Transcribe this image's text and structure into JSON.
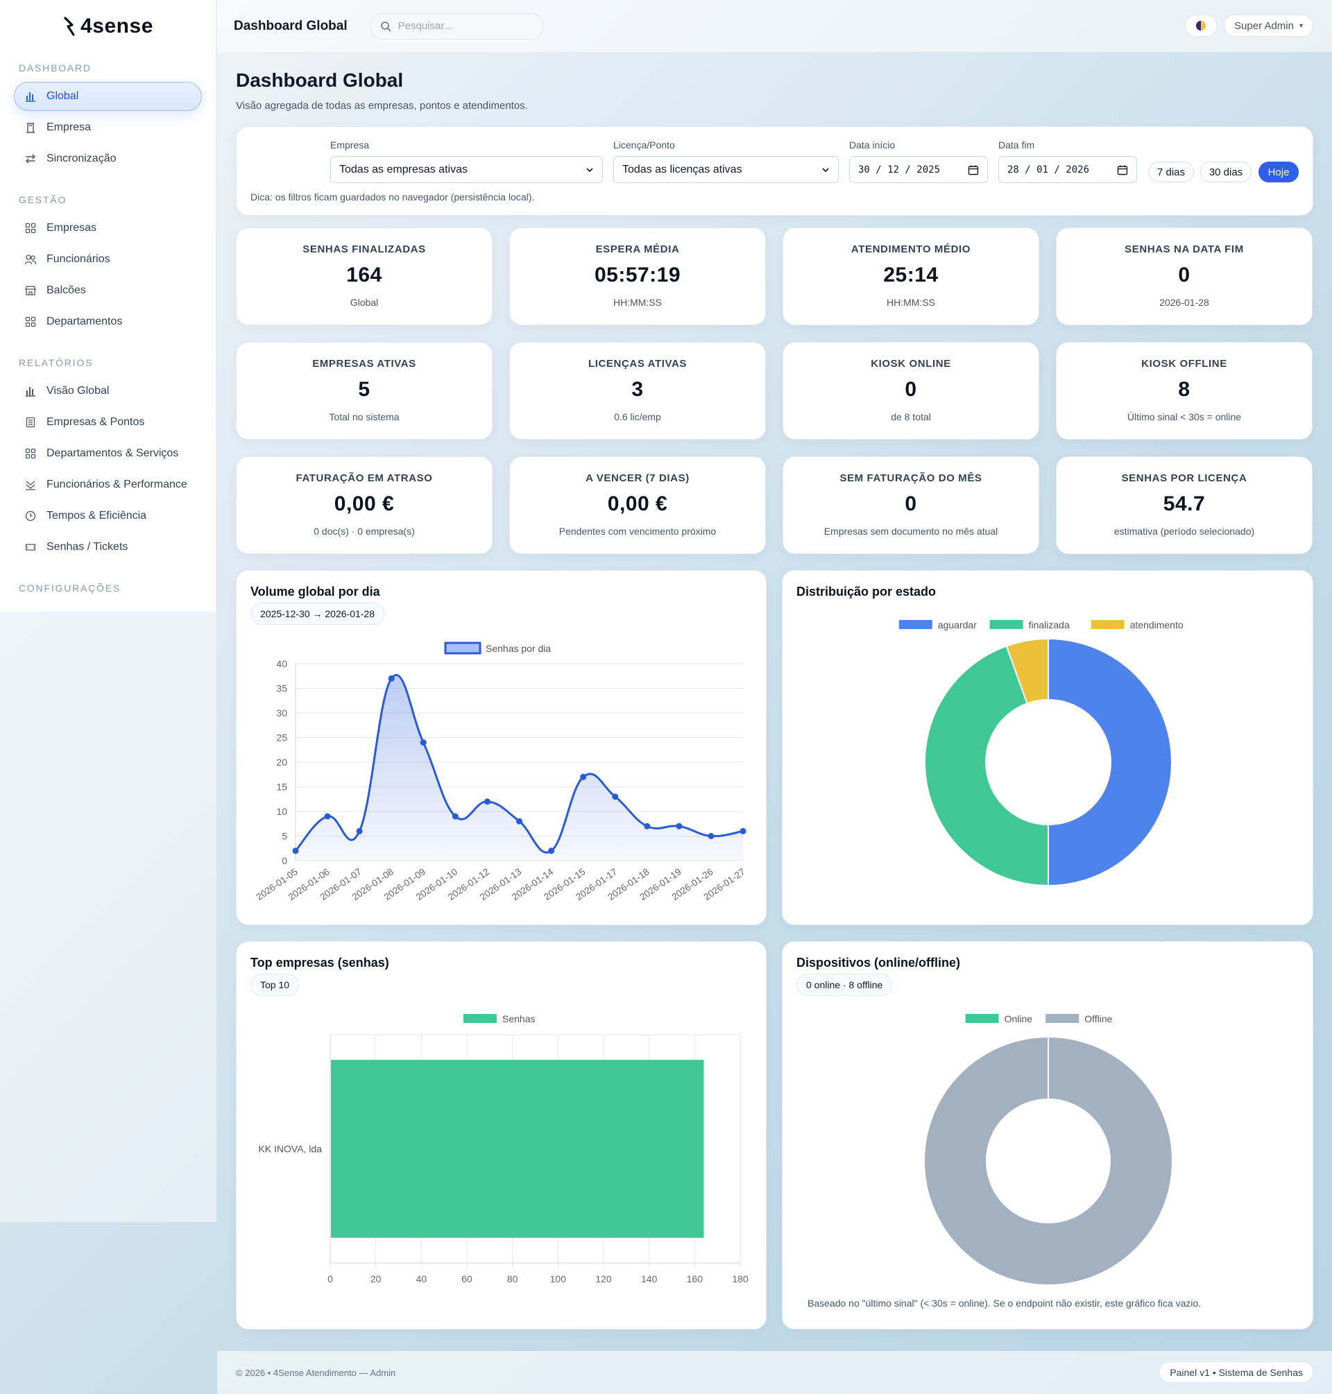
{
  "brand": {
    "name": "4sense"
  },
  "sidebar": {
    "sections": [
      {
        "title": "DASHBOARD",
        "items": [
          {
            "label": "Global",
            "icon": "bar-chart-icon",
            "active": true
          },
          {
            "label": "Empresa",
            "icon": "building-icon"
          },
          {
            "label": "Sincronização",
            "icon": "sync-arrows-icon"
          }
        ]
      },
      {
        "title": "GESTÃO",
        "items": [
          {
            "label": "Empresas",
            "icon": "grid-icon"
          },
          {
            "label": "Funcionários",
            "icon": "users-icon"
          },
          {
            "label": "Balcões",
            "icon": "store-icon"
          },
          {
            "label": "Departamentos",
            "icon": "grid-icon"
          }
        ]
      },
      {
        "title": "RELATÓRIOS",
        "items": [
          {
            "label": "Visão Global",
            "icon": "bar-chart-icon"
          },
          {
            "label": "Empresas & Pontos",
            "icon": "building-list-icon"
          },
          {
            "label": "Departamentos & Serviços",
            "icon": "grid-icon"
          },
          {
            "label": "Funcionários & Performance",
            "icon": "performance-icon"
          },
          {
            "label": "Tempos & Eficiência",
            "icon": "clock-icon"
          },
          {
            "label": "Senhas / Tickets",
            "icon": "ticket-icon"
          }
        ]
      },
      {
        "title": "CONFIGURAÇÕES",
        "items": []
      }
    ]
  },
  "topbar": {
    "title": "Dashboard Global",
    "search_placeholder": "Pesquisar...",
    "user_label": "Super Admin",
    "user_caret": "▾"
  },
  "page": {
    "title": "Dashboard Global",
    "subtitle": "Visão agregada de todas as empresas, pontos e atendimentos."
  },
  "filters": {
    "empresa_label": "Empresa",
    "empresa_value": "Todas as empresas ativas",
    "licenca_label": "Licença/Ponto",
    "licenca_value": "Todas as licenças ativas",
    "inicio_label": "Data início",
    "inicio_value": "30 / 12 / 2025",
    "fim_label": "Data fim",
    "fim_value": "28 / 01 / 2026",
    "btn_7": "7 dias",
    "btn_30": "30 dias",
    "btn_hoje": "Hoje",
    "tip": "Dica: os filtros ficam guardados no navegador (persistência local)."
  },
  "kpis": [
    {
      "label": "SENHAS FINALIZADAS",
      "value": "164",
      "sub": "Global"
    },
    {
      "label": "ESPERA MÉDIA",
      "value": "05:57:19",
      "sub": "HH:MM:SS"
    },
    {
      "label": "ATENDIMENTO MÉDIO",
      "value": "25:14",
      "sub": "HH:MM:SS"
    },
    {
      "label": "SENHAS NA DATA FIM",
      "value": "0",
      "sub": "2026-01-28"
    },
    {
      "label": "EMPRESAS ATIVAS",
      "value": "5",
      "sub": "Total no sistema"
    },
    {
      "label": "LICENÇAS ATIVAS",
      "value": "3",
      "sub": "0.6 lic/emp"
    },
    {
      "label": "KIOSK ONLINE",
      "value": "0",
      "sub": "de 8 total"
    },
    {
      "label": "KIOSK OFFLINE",
      "value": "8",
      "sub": "Último sinal < 30s = online"
    },
    {
      "label": "FATURAÇÃO EM ATRASO",
      "value": "0,00 €",
      "sub": "0 doc(s) · 0 empresa(s)"
    },
    {
      "label": "A VENCER (7 DIAS)",
      "value": "0,00 €",
      "sub": "Pendentes com vencimento próximo"
    },
    {
      "label": "SEM FATURAÇÃO DO MÊS",
      "value": "0",
      "sub": "Empresas sem documento no mês atual"
    },
    {
      "label": "SENHAS POR LICENÇA",
      "value": "54.7",
      "sub": "estimativa (período selecionado)"
    }
  ],
  "panels": {
    "volume": {
      "title": "Volume global por dia",
      "pill": "2025-12-30 → 2026-01-28"
    },
    "estado": {
      "title": "Distribuição por estado"
    },
    "top": {
      "title": "Top empresas (senhas)",
      "pill": "Top 10"
    },
    "dispositivos": {
      "title": "Dispositivos (online/offline)",
      "pill": "0 online · 8 offline",
      "note": "Baseado no \"último sinal\" (< 30s = online). Se o endpoint não existir, este gráfico fica vazio."
    }
  },
  "chart_data": [
    {
      "type": "line",
      "x": [
        "2026-01-05",
        "2026-01-06",
        "2026-01-07",
        "2026-01-08",
        "2026-01-09",
        "2026-01-10",
        "2026-01-12",
        "2026-01-13",
        "2026-01-14",
        "2026-01-15",
        "2026-01-17",
        "2026-01-18",
        "2026-01-19",
        "2026-01-26",
        "2026-01-27"
      ],
      "series": [
        {
          "name": "Senhas por dia",
          "values": [
            2,
            9,
            6,
            37,
            24,
            9,
            12,
            8,
            2,
            17,
            13,
            7,
            7,
            5,
            6
          ]
        }
      ],
      "ylim": [
        0,
        40
      ],
      "yticks": [
        0,
        5,
        10,
        15,
        20,
        25,
        30,
        35,
        40
      ],
      "color": "#2a5bd7",
      "grid": true,
      "legend": "top"
    },
    {
      "type": "pie",
      "categories": [
        "aguardar",
        "finalizada",
        "atendimento"
      ],
      "values": [
        50,
        44.5,
        5.5
      ],
      "colors": [
        "#4f83ec",
        "#3fc795",
        "#ecc13a"
      ],
      "legend": "top"
    },
    {
      "type": "bar",
      "categories": [
        "KK INOVA, lda"
      ],
      "series": [
        {
          "name": "Senhas",
          "values": [
            164
          ]
        }
      ],
      "xlim": [
        0,
        180
      ],
      "xticks": [
        0,
        20,
        40,
        60,
        80,
        100,
        120,
        140,
        160,
        180
      ],
      "color": "#3fc795",
      "grid": true,
      "legend": "top"
    },
    {
      "type": "pie",
      "categories": [
        "Online",
        "Offline"
      ],
      "values": [
        0,
        8
      ],
      "colors": [
        "#3fc795",
        "#a3b0c0"
      ],
      "legend": "top"
    }
  ],
  "footer": {
    "left": "© 2026 • 4Sense Atendimento — Admin",
    "right": "Painel v1 • Sistema de Senhas"
  }
}
